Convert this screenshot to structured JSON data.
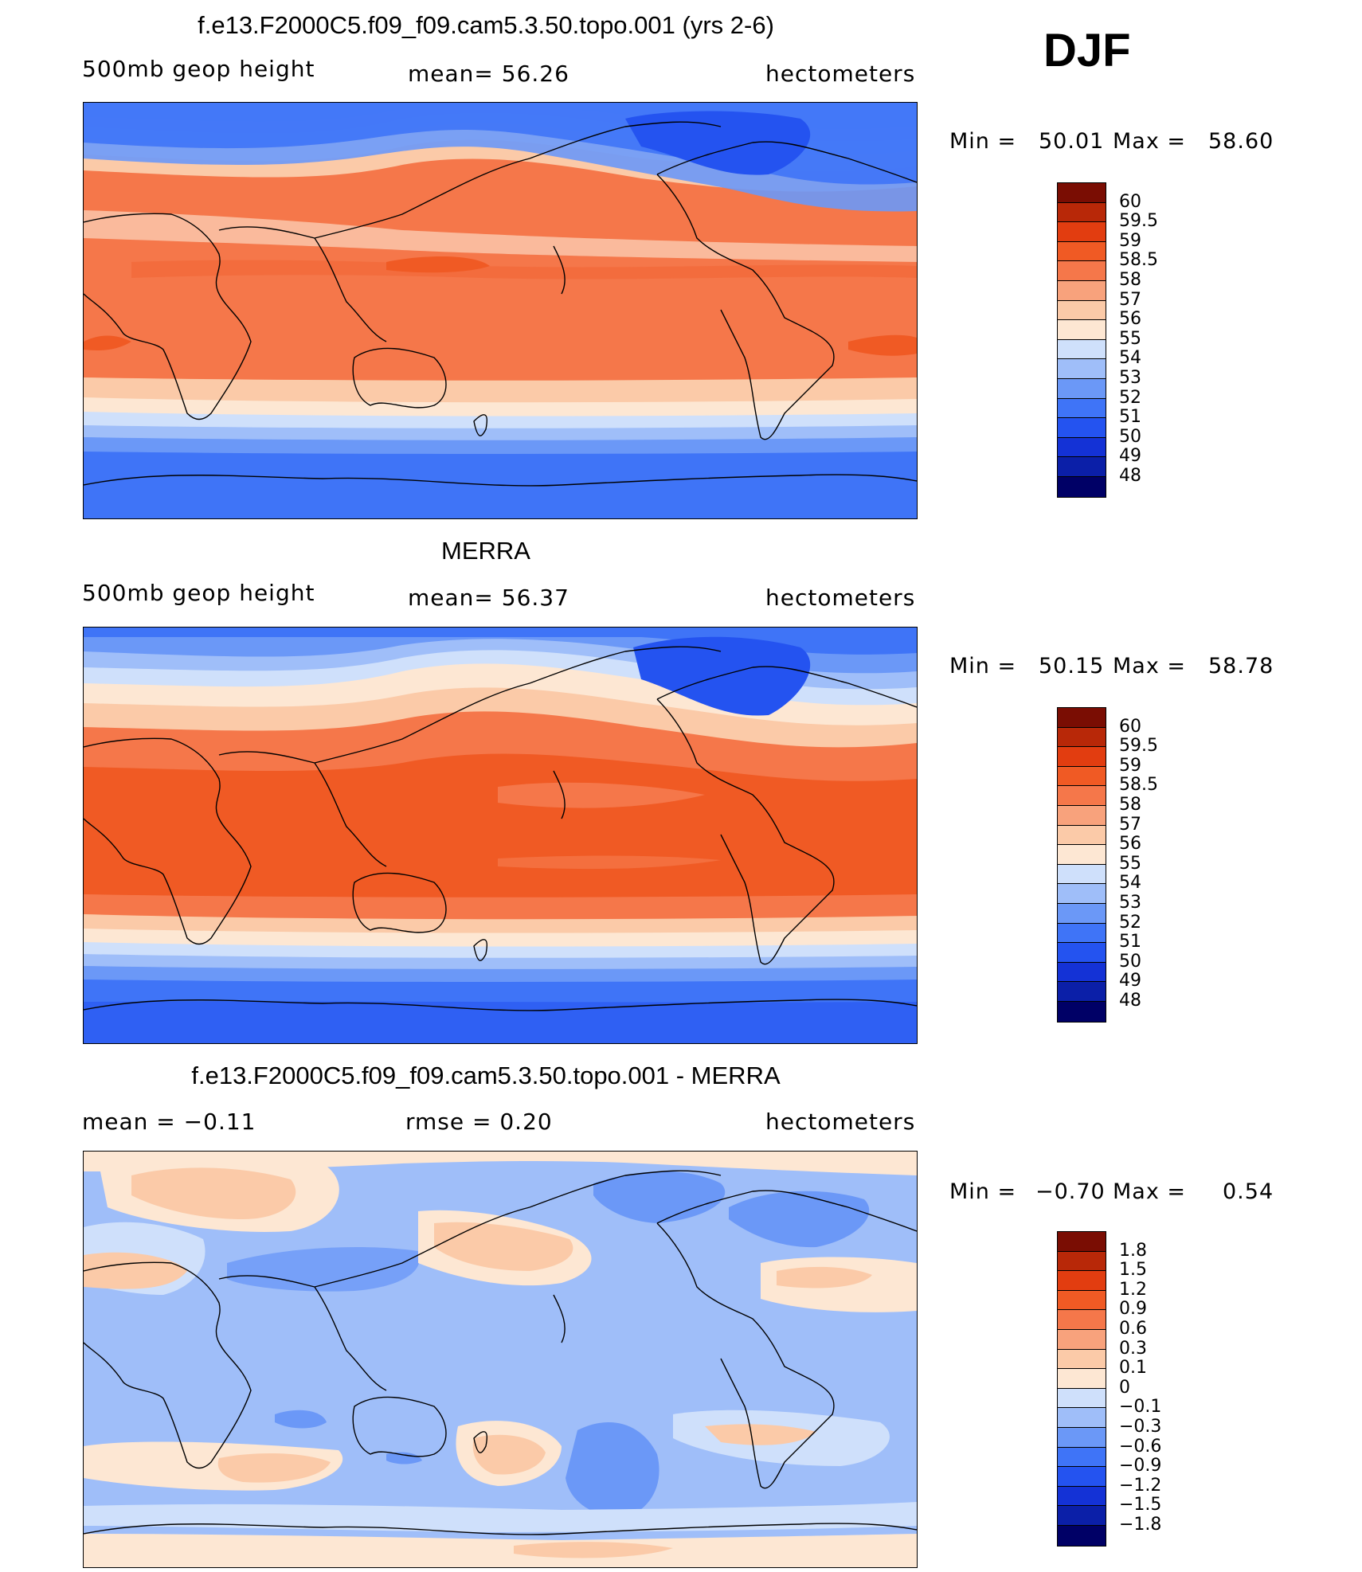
{
  "season": "DJF",
  "colors": {
    "model": [
      "#000066",
      "#0b1fa8",
      "#1432d6",
      "#2453f0",
      "#3f74f7",
      "#6b98f7",
      "#9fbef9",
      "#cfe0fb",
      "#fde7d3",
      "#fbcaa8",
      "#f8a27c",
      "#f5774a",
      "#f05a24",
      "#e23d10",
      "#b82808",
      "#7a0d03"
    ],
    "diff": [
      "#000066",
      "#0b1fa8",
      "#1432d6",
      "#2453f0",
      "#3f74f7",
      "#6b98f7",
      "#9fbef9",
      "#cfe0fb",
      "#fde7d3",
      "#fbcaa8",
      "#f8a27c",
      "#f5774a",
      "#f05a24",
      "#e23d10",
      "#b82808",
      "#7a0d03"
    ]
  },
  "panels": [
    {
      "title": "f.e13.F2000C5.f09_f09.cam5.3.50.topo.001 (yrs 2-6)",
      "left_label": "500mb  geop  height",
      "center_label": "mean=   56.26",
      "right_label": "hectometers",
      "min_label": "Min  =",
      "min_value": "50.01",
      "max_label": "Max  =",
      "max_value": "58.60",
      "colorbar_labels": [
        "60",
        "59.5",
        "59",
        "58.5",
        "58",
        "57",
        "56",
        "55",
        "54",
        "53",
        "52",
        "51",
        "50",
        "49",
        "48"
      ]
    },
    {
      "title": "MERRA",
      "left_label": "500mb  geop  height",
      "center_label": "mean=   56.37",
      "right_label": "hectometers",
      "min_label": "Min  =",
      "min_value": "50.15",
      "max_label": "Max  =",
      "max_value": "58.78",
      "colorbar_labels": [
        "60",
        "59.5",
        "59",
        "58.5",
        "58",
        "57",
        "56",
        "55",
        "54",
        "53",
        "52",
        "51",
        "50",
        "49",
        "48"
      ]
    },
    {
      "title": "f.e13.F2000C5.f09_f09.cam5.3.50.topo.001 - MERRA",
      "left_label": "mean  =    −0.11",
      "center_label": "rmse  =     0.20",
      "right_label": "hectometers",
      "min_label": "Min  =",
      "min_value": "−0.70",
      "max_label": "Max  =",
      "max_value": "0.54",
      "colorbar_labels": [
        "1.8",
        "1.5",
        "1.2",
        "0.9",
        "0.6",
        "0.3",
        "0.1",
        "0",
        "−0.1",
        "−0.3",
        "−0.6",
        "−0.9",
        "−1.2",
        "−1.5",
        "−1.8"
      ]
    }
  ]
}
